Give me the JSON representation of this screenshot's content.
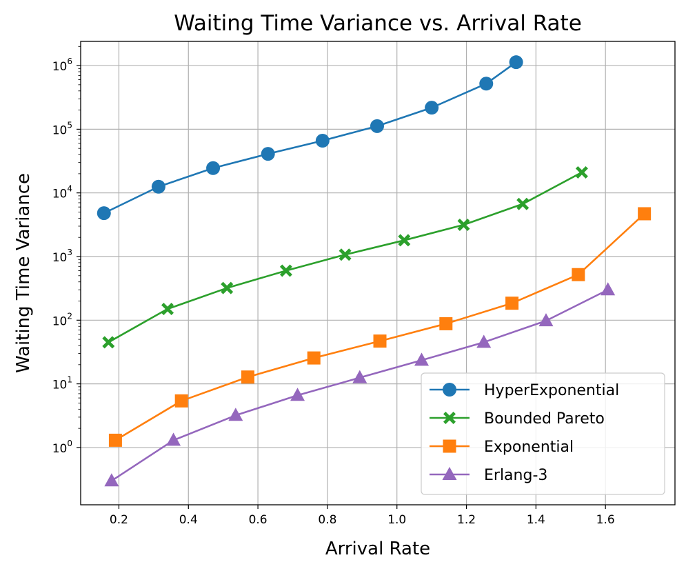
{
  "chart_data": {
    "type": "line",
    "title": "Waiting Time Variance vs. Arrival Rate",
    "xlabel": "Arrival Rate",
    "ylabel": "Waiting Time Variance",
    "yscale": "log",
    "xlim": [
      0.09,
      1.8
    ],
    "ylim_log10": [
      -0.9,
      6.38
    ],
    "xticks": [
      0.2,
      0.4,
      0.6,
      0.8,
      1.0,
      1.2,
      1.4,
      1.6
    ],
    "xtick_labels": [
      "0.2",
      "0.4",
      "0.6",
      "0.8",
      "1.0",
      "1.2",
      "1.4",
      "1.6"
    ],
    "yticks": [
      {
        "exp": 0,
        "base": "10",
        "sup": "0"
      },
      {
        "exp": 1,
        "base": "10",
        "sup": "1"
      },
      {
        "exp": 2,
        "base": "10",
        "sup": "2"
      },
      {
        "exp": 3,
        "base": "10",
        "sup": "3"
      },
      {
        "exp": 4,
        "base": "10",
        "sup": "4"
      },
      {
        "exp": 5,
        "base": "10",
        "sup": "5"
      },
      {
        "exp": 6,
        "base": "10",
        "sup": "6"
      }
    ],
    "grid": true,
    "legend_position": "bottom-right",
    "series": [
      {
        "name": "HyperExponential",
        "color": "#1f77b4",
        "marker": "circle",
        "x": [
          0.157,
          0.314,
          0.471,
          0.629,
          0.786,
          0.943,
          1.1,
          1.257,
          1.343
        ],
        "y": [
          4800,
          12500,
          24500,
          41000,
          66000,
          112000,
          218000,
          520000,
          1130000
        ]
      },
      {
        "name": "Bounded Pareto",
        "color": "#2ca02c",
        "marker": "x",
        "x": [
          0.17,
          0.34,
          0.511,
          0.681,
          0.851,
          1.021,
          1.192,
          1.362,
          1.532
        ],
        "y": [
          45,
          150,
          320,
          600,
          1070,
          1800,
          3150,
          6700,
          21000
        ]
      },
      {
        "name": "Exponential",
        "color": "#ff7f0e",
        "marker": "square",
        "x": [
          0.19,
          0.38,
          0.571,
          0.761,
          0.951,
          1.141,
          1.331,
          1.522,
          1.712
        ],
        "y": [
          1.3,
          5.4,
          12.8,
          25.5,
          47,
          88,
          185,
          520,
          4700
        ]
      },
      {
        "name": "Erlang-3",
        "color": "#9467bd",
        "marker": "triangle",
        "x": [
          0.179,
          0.357,
          0.536,
          0.714,
          0.893,
          1.071,
          1.25,
          1.429,
          1.607
        ],
        "y": [
          0.3,
          1.3,
          3.2,
          6.6,
          12.5,
          23.5,
          45,
          98,
          300
        ]
      }
    ]
  }
}
